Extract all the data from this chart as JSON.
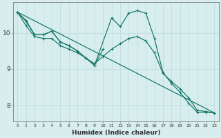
{
  "xlabel": "Humidex (Indice chaleur)",
  "bg_color": "#d8eeee",
  "grid_color_major": "#c0dede",
  "grid_color_minor": "#c0dede",
  "line_color": "#1a7a6e",
  "x_ticks": [
    0,
    1,
    2,
    3,
    4,
    5,
    6,
    7,
    8,
    9,
    10,
    11,
    12,
    13,
    14,
    15,
    16,
    17,
    18,
    19,
    20,
    21,
    22,
    23
  ],
  "xlim": [
    -0.5,
    23.5
  ],
  "ylim": [
    7.55,
    10.85
  ],
  "yticks": [
    8,
    9,
    10
  ],
  "line1_x": [
    0,
    1,
    2,
    3,
    4,
    5,
    6,
    7,
    8,
    9,
    11,
    12,
    13,
    14,
    15,
    16,
    17,
    18,
    19,
    20,
    21,
    22,
    23
  ],
  "line1_y": [
    10.58,
    10.35,
    9.95,
    9.95,
    10.05,
    9.75,
    9.65,
    9.5,
    9.3,
    9.1,
    10.42,
    10.18,
    10.55,
    10.62,
    10.55,
    9.85,
    8.9,
    8.6,
    8.35,
    8.05,
    7.8,
    7.8,
    7.78
  ],
  "line2_x": [
    0,
    1,
    2,
    3,
    4,
    5,
    6,
    7,
    8,
    9,
    10,
    11,
    12,
    13,
    14,
    15,
    16,
    17,
    18,
    19,
    20,
    21,
    22,
    23
  ],
  "line2_y": [
    10.58,
    10.2,
    9.9,
    9.85,
    9.85,
    9.65,
    9.55,
    9.45,
    9.3,
    9.15,
    9.35,
    9.55,
    9.7,
    9.85,
    9.9,
    9.78,
    9.45,
    8.88,
    8.65,
    8.45,
    8.2,
    7.85,
    7.82,
    7.78
  ],
  "line3_x": [
    0,
    1,
    2,
    3,
    4,
    5,
    6,
    7,
    8,
    9,
    10
  ],
  "line3_y": [
    10.58,
    10.32,
    9.95,
    9.95,
    10.05,
    9.75,
    9.65,
    9.5,
    9.3,
    9.1,
    9.55
  ],
  "line4_x": [
    0,
    23
  ],
  "line4_y": [
    10.58,
    7.78
  ]
}
